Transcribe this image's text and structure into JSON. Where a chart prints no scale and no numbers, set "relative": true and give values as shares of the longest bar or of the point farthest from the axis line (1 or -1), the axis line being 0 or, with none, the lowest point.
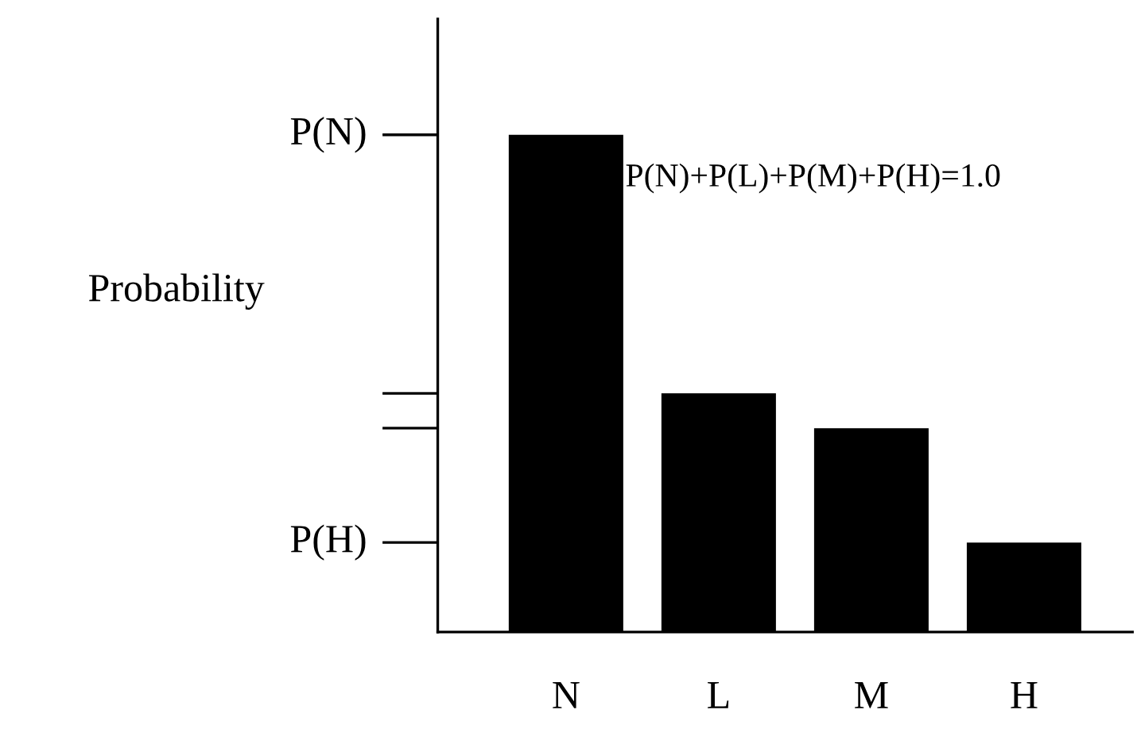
{
  "chart_data": {
    "type": "bar",
    "relative": true,
    "ylabel": "Probability",
    "categories": [
      "N",
      "L",
      "M",
      "H"
    ],
    "values": [
      1,
      0.48,
      0.41,
      0.18
    ],
    "color": "#000000",
    "annotations": [
      "P(N)",
      "P(H)",
      "P(N)+P(L)+P(M)+P(H)=1.0"
    ],
    "grid": false,
    "legend": false
  }
}
